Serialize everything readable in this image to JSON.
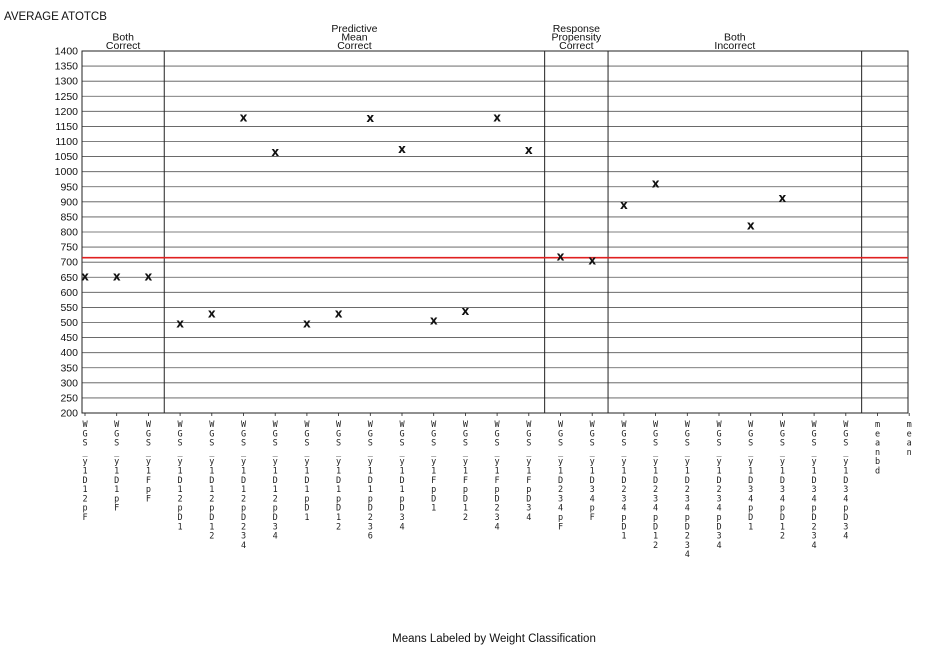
{
  "chart_data": {
    "type": "scatter",
    "ylabel": "AVERAGE ATOTCB",
    "xlabel": "Means Labeled by Weight Classification",
    "ylim": [
      200,
      1400
    ],
    "yticks": [
      200,
      250,
      300,
      350,
      400,
      450,
      500,
      550,
      600,
      650,
      700,
      750,
      800,
      850,
      900,
      950,
      1000,
      1050,
      1100,
      1150,
      1200,
      1250,
      1300,
      1350,
      1400
    ],
    "reference_line": {
      "y": 715,
      "color": "#e02020"
    },
    "marker": "x",
    "grid": "horizontal",
    "groups": [
      {
        "title": "Both Correct",
        "title_lines": [
          "Both",
          "Correct"
        ],
        "start": 0,
        "end": 2
      },
      {
        "title": "Predictive Mean Correct",
        "title_lines": [
          "Predictive",
          "Mean",
          "Correct"
        ],
        "start": 3,
        "end": 14
      },
      {
        "title": "Response Propensity Correct",
        "title_lines": [
          "Response",
          "Propensity",
          "Correct"
        ],
        "start": 15,
        "end": 16
      },
      {
        "title": "Both Incorrect",
        "title_lines": [
          "Both",
          "Incorrect"
        ],
        "start": 17,
        "end": 24
      }
    ],
    "categories": [
      "WGS_y1D12pF",
      "WGS_y1D1pF",
      "WGS_y1FpF",
      "WGS_y1D12pD1",
      "WGS_y1D12pD12",
      "WGS_y1D12pD234",
      "WGS_y1D12pD34",
      "WGS_y1D1pD1",
      "WGS_y1D1pD12",
      "WGS_y1D1pD236",
      "WGS_y1D1pD34",
      "WGS_y1FpD1",
      "WGS_y1FpD12",
      "WGS_y1FpD234",
      "WGS_y1FpD34",
      "WGS_y1D234pF",
      "WGS_y1D34pF",
      "WGS_y1D234pD1",
      "WGS_y1D234pD12",
      "WGS_y1D234pD234",
      "WGS_y1D234pD34",
      "WGS_y1D34pD1",
      "WGS_y1D34pD12",
      "WGS_y1D34pD234",
      "WGS_y1D34pD34",
      "meanbd",
      "mean"
    ],
    "values": [
      652,
      652,
      652,
      497,
      530,
      1180,
      1065,
      497,
      530,
      1178,
      1075,
      507,
      538,
      1180,
      1072,
      718,
      705,
      890,
      960,
      null,
      null,
      822,
      912,
      null,
      null,
      null,
      null
    ]
  }
}
